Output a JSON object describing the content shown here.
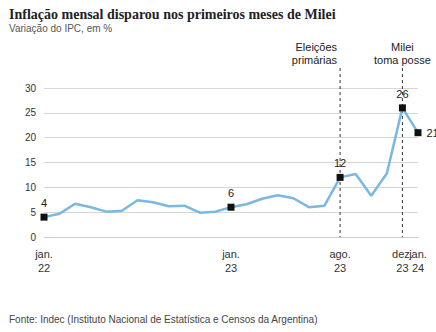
{
  "chart_data": {
    "type": "line",
    "title": "Inflação mensal disparou nos primeiros meses de Milei",
    "subtitle": "Variação do IPC, em %",
    "source": "Fonte: Indec (Instituto Nacional de Estatística e Censos da Argentina)",
    "categories": [
      "jan.\n22",
      null,
      null,
      null,
      null,
      null,
      null,
      null,
      null,
      null,
      null,
      null,
      "jan.\n23",
      null,
      null,
      null,
      null,
      null,
      null,
      "ago.\n23",
      null,
      null,
      null,
      "dez.\n23",
      "jan.\n24"
    ],
    "values": [
      4,
      4.7,
      6.7,
      6,
      5.1,
      5.3,
      7.4,
      7,
      6.2,
      6.3,
      4.9,
      5.1,
      6,
      6.6,
      7.7,
      8.4,
      7.8,
      6,
      6.3,
      12,
      12.7,
      8.3,
      12.8,
      26,
      21
    ],
    "value_labels": [
      "4",
      null,
      null,
      null,
      null,
      null,
      null,
      null,
      null,
      null,
      null,
      null,
      "6",
      null,
      null,
      null,
      null,
      null,
      null,
      "12",
      null,
      null,
      null,
      "26",
      "21"
    ],
    "data_labels": true,
    "color": "#7ab8e0",
    "marker": "square",
    "ylim": [
      0,
      30
    ],
    "yticks": [
      0,
      5,
      10,
      15,
      20,
      25,
      30
    ],
    "grid": true,
    "annotations": [
      {
        "text": "Eleições\nprimárias",
        "x": 19
      },
      {
        "text": "Milei\ntoma posse",
        "x": 23
      }
    ]
  }
}
